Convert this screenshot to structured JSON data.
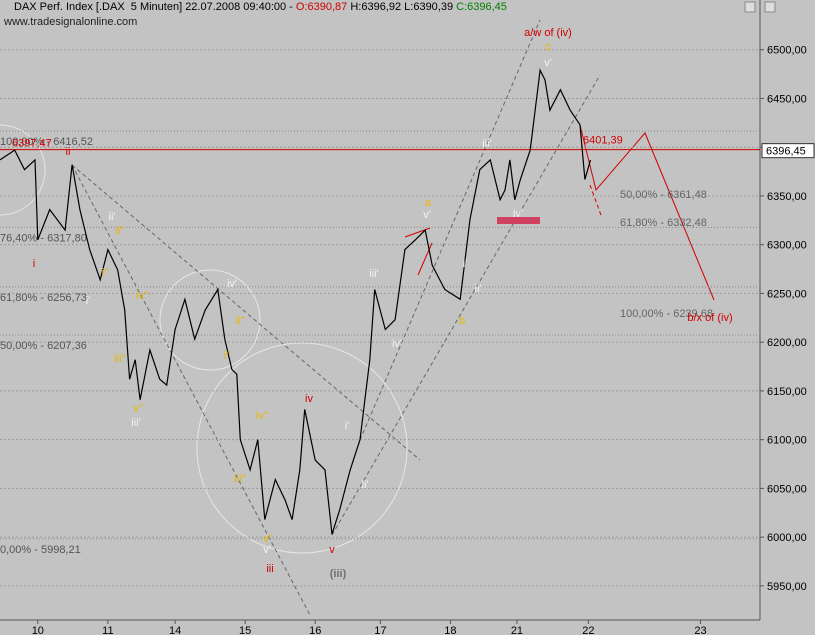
{
  "chart_data": {
    "type": "line",
    "header": [
      "DAX Perf. Index [.DAX  5 Minuten] 22.07.2008 09:40:00 - ",
      "O:6390,87",
      " H:6396,92 L:6390,39",
      " C:6396,45"
    ],
    "header_colors": [
      "#000000",
      "#d00000",
      "#000000",
      "#008000"
    ],
    "source": "www.tradesignalonline.com",
    "x": [
      -0.54,
      -0.33,
      -0.19,
      -0.04,
      0,
      0.17,
      0.39,
      0.49,
      0.6,
      0.74,
      0.89,
      1.0,
      1.14,
      1.24,
      1.31,
      1.39,
      1.46,
      1.6,
      1.74,
      1.84,
      1.96,
      2.1,
      2.24,
      2.39,
      2.57,
      2.67,
      2.77,
      2.84,
      2.89,
      3.03,
      3.14,
      3.24,
      3.39,
      3.53,
      3.63,
      3.74,
      3.81,
      3.96,
      4.1,
      4.2,
      4.31,
      4.46,
      4.6,
      4.67,
      4.74,
      4.81,
      4.96,
      5.1,
      5.24,
      5.39,
      5.53,
      5.63,
      5.81,
      6.03,
      6.17,
      6.31,
      6.46,
      6.6,
      6.67,
      6.74,
      6.81,
      6.89,
      7.03,
      7.17,
      7.24,
      7.31,
      7.46,
      7.6,
      7.74,
      7.81,
      7.89
    ],
    "series": [
      {
        "name": "DAX",
        "color": "#000000",
        "values": [
          6387,
          6397,
          6377,
          6387,
          6305,
          6336,
          6315,
          6382,
          6336,
          6295,
          6264,
          6295,
          6274,
          6233,
          6162,
          6182,
          6141,
          6192,
          6162,
          6156,
          6213,
          6244,
          6203,
          6233,
          6254,
          6203,
          6172,
          6167,
          6100,
          6069,
          6100,
          6018,
          6059,
          6038,
          6018,
          6069,
          6131,
          6079,
          6069,
          6003,
          6028,
          6069,
          6100,
          6141,
          6182,
          6254,
          6213,
          6223,
          6295,
          6305,
          6315,
          6279,
          6254,
          6244,
          6326,
          6377,
          6387,
          6346,
          6356,
          6387,
          6346,
          6367,
          6397,
          6479,
          6469,
          6438,
          6459,
          6438,
          6423,
          6367,
          6387
        ]
      }
    ],
    "xlim": [
      -0.54,
      10.31
    ],
    "xticks": [
      {
        "value": 0,
        "label": "10"
      },
      {
        "value": 1,
        "label": "11"
      },
      {
        "value": 1.96,
        "label": "14"
      },
      {
        "value": 2.96,
        "label": "15"
      },
      {
        "value": 3.96,
        "label": "16"
      },
      {
        "value": 4.89,
        "label": "17"
      },
      {
        "value": 5.89,
        "label": "18"
      },
      {
        "value": 6.84,
        "label": "21"
      },
      {
        "value": 7.86,
        "label": "22"
      },
      {
        "value": 9.46,
        "label": "23"
      }
    ],
    "ylim": [
      5915,
      6551
    ],
    "yticks": [
      {
        "value": 5950,
        "label": "5950,00"
      },
      {
        "value": 6000,
        "label": "6000,00"
      },
      {
        "value": 6050,
        "label": "6050,00"
      },
      {
        "value": 6100,
        "label": "6100,00"
      },
      {
        "value": 6150,
        "label": "6150,00"
      },
      {
        "value": 6200,
        "label": "6200,00"
      },
      {
        "value": 6250,
        "label": "6250,00"
      },
      {
        "value": 6300,
        "label": "6300,00"
      },
      {
        "value": 6350,
        "label": "6350,00"
      },
      {
        "value": 6400,
        "label": "6400,00"
      },
      {
        "value": 6450,
        "label": "6450,00"
      },
      {
        "value": 6500,
        "label": "6500,00"
      }
    ],
    "last_price": {
      "value": 6396.45,
      "label": "6396,45"
    },
    "ref_line": {
      "value": 6397.47,
      "label": "6397,47"
    },
    "ref_label2": "6401,39",
    "levels": [
      {
        "value": 6416.52,
        "label": "100,00% - 6416,52"
      },
      {
        "value": 6317.8,
        "label": "76,40% - 6317,80"
      },
      {
        "value": 6256.73,
        "label": "61,80% - 6256,73"
      },
      {
        "value": 6207.36,
        "label": "50,00% - 6207,36"
      },
      {
        "value": 5998.21,
        "label": "0,00% - 5998,21"
      }
    ],
    "projection_labels": [
      "50,00% - 6361,48",
      "61,80% - 6332,48",
      "100,00% - 6239,68"
    ],
    "annotations": [
      {
        "text": "a/w of (iv)",
        "color": "#d00000"
      },
      {
        "text": "b/x of (iv)",
        "color": "#d00000"
      },
      {
        "text": "(iii)",
        "color": "#707070"
      },
      {
        "text": "i",
        "color": "#d00000"
      },
      {
        "text": "ii",
        "color": "#d00000"
      },
      {
        "text": "iii",
        "color": "#d00000"
      },
      {
        "text": "iv",
        "color": "#d00000"
      },
      {
        "text": "v",
        "color": "#d00000"
      },
      {
        "text": "c",
        "color": "#e8b800"
      },
      {
        "text": "a",
        "color": "#e8b800"
      },
      {
        "text": "b",
        "color": "#e8b800"
      },
      {
        "text": "ii''",
        "color": "#e8b800"
      },
      {
        "text": "i''",
        "color": "#e8b800"
      },
      {
        "text": "iv''",
        "color": "#e8b800"
      },
      {
        "text": "iii''",
        "color": "#e8b800"
      },
      {
        "text": "v''",
        "color": "#e8b800"
      },
      {
        "text": "ii''",
        "color": "#e8b800"
      },
      {
        "text": "i''",
        "color": "#e8b800"
      },
      {
        "text": "iv''",
        "color": "#e8b800"
      },
      {
        "text": "iii''",
        "color": "#e8b800"
      },
      {
        "text": "v''",
        "color": "#e8b800"
      },
      {
        "text": "v'",
        "color": "#f4f4f4"
      },
      {
        "text": "iii'",
        "color": "#f4f4f4"
      },
      {
        "text": "iv'",
        "color": "#f4f4f4"
      },
      {
        "text": "v'",
        "color": "#f4f4f4"
      },
      {
        "text": "iii'",
        "color": "#f4f4f4"
      },
      {
        "text": "iv'",
        "color": "#f4f4f4"
      },
      {
        "text": "ii'",
        "color": "#f4f4f4"
      },
      {
        "text": "i'",
        "color": "#f4f4f4"
      },
      {
        "text": "i'",
        "color": "#f4f4f4"
      },
      {
        "text": "ii'",
        "color": "#f4f4f4"
      },
      {
        "text": "ii'",
        "color": "#f4f4f4"
      },
      {
        "text": "i'",
        "color": "#f4f4f4"
      },
      {
        "text": "iii'",
        "color": "#f4f4f4"
      },
      {
        "text": "iv'",
        "color": "#f4f4f4"
      },
      {
        "text": "v'",
        "color": "#f4f4f4"
      }
    ]
  }
}
